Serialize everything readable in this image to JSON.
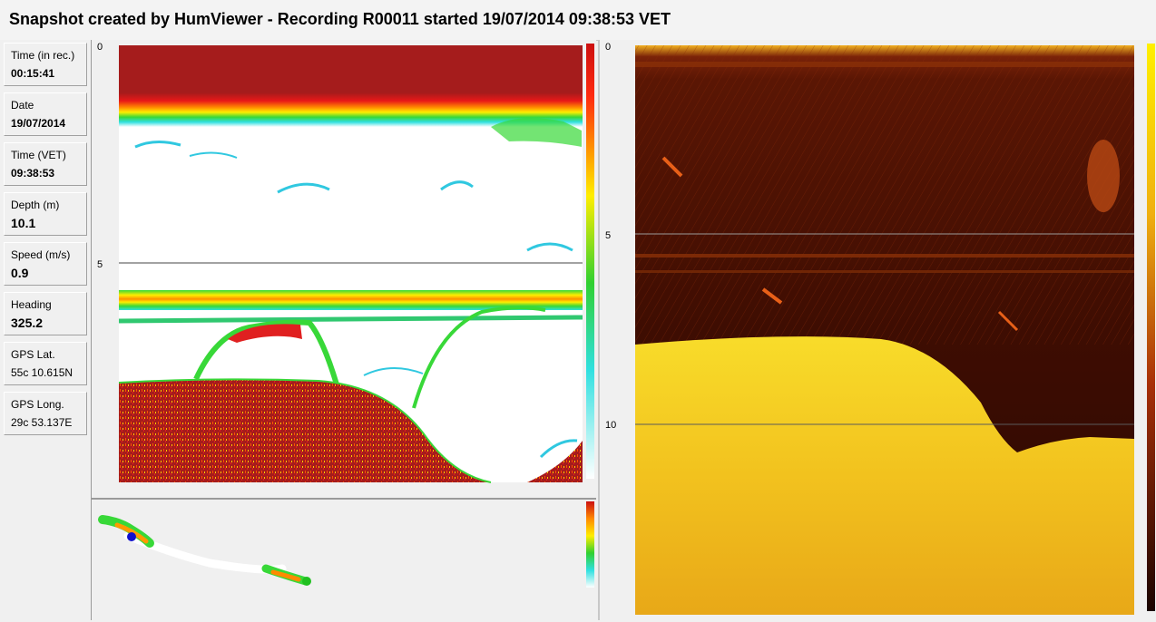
{
  "header": {
    "title": "Snapshot created by HumViewer - Recording R00011 started 19/07/2014 09:38:53 VET"
  },
  "info": [
    {
      "label": "Time (in rec.)",
      "value": "00:15:41"
    },
    {
      "label": "Date",
      "value": "19/07/2014"
    },
    {
      "label": "Time (VET)",
      "value": "09:38:53"
    },
    {
      "label": "Depth (m)",
      "value": "10.1"
    },
    {
      "label": "Speed (m/s)",
      "value": "0.9"
    },
    {
      "label": "Heading",
      "value": "325.2"
    },
    {
      "label": "GPS Lat.",
      "value": "55c 10.615N"
    },
    {
      "label": "GPS Long.",
      "value": "29c 53.137E"
    }
  ],
  "sonar": {
    "depth_ticks": [
      "0",
      "5"
    ]
  },
  "sidescan": {
    "depth_ticks": [
      "0",
      "5",
      "10"
    ]
  },
  "colors": {
    "bottom_red": "#a51c1c",
    "sidescan_dark": "#3e0d02",
    "sidescan_bright": "#f5cc20",
    "track_position": "#1010cc"
  }
}
